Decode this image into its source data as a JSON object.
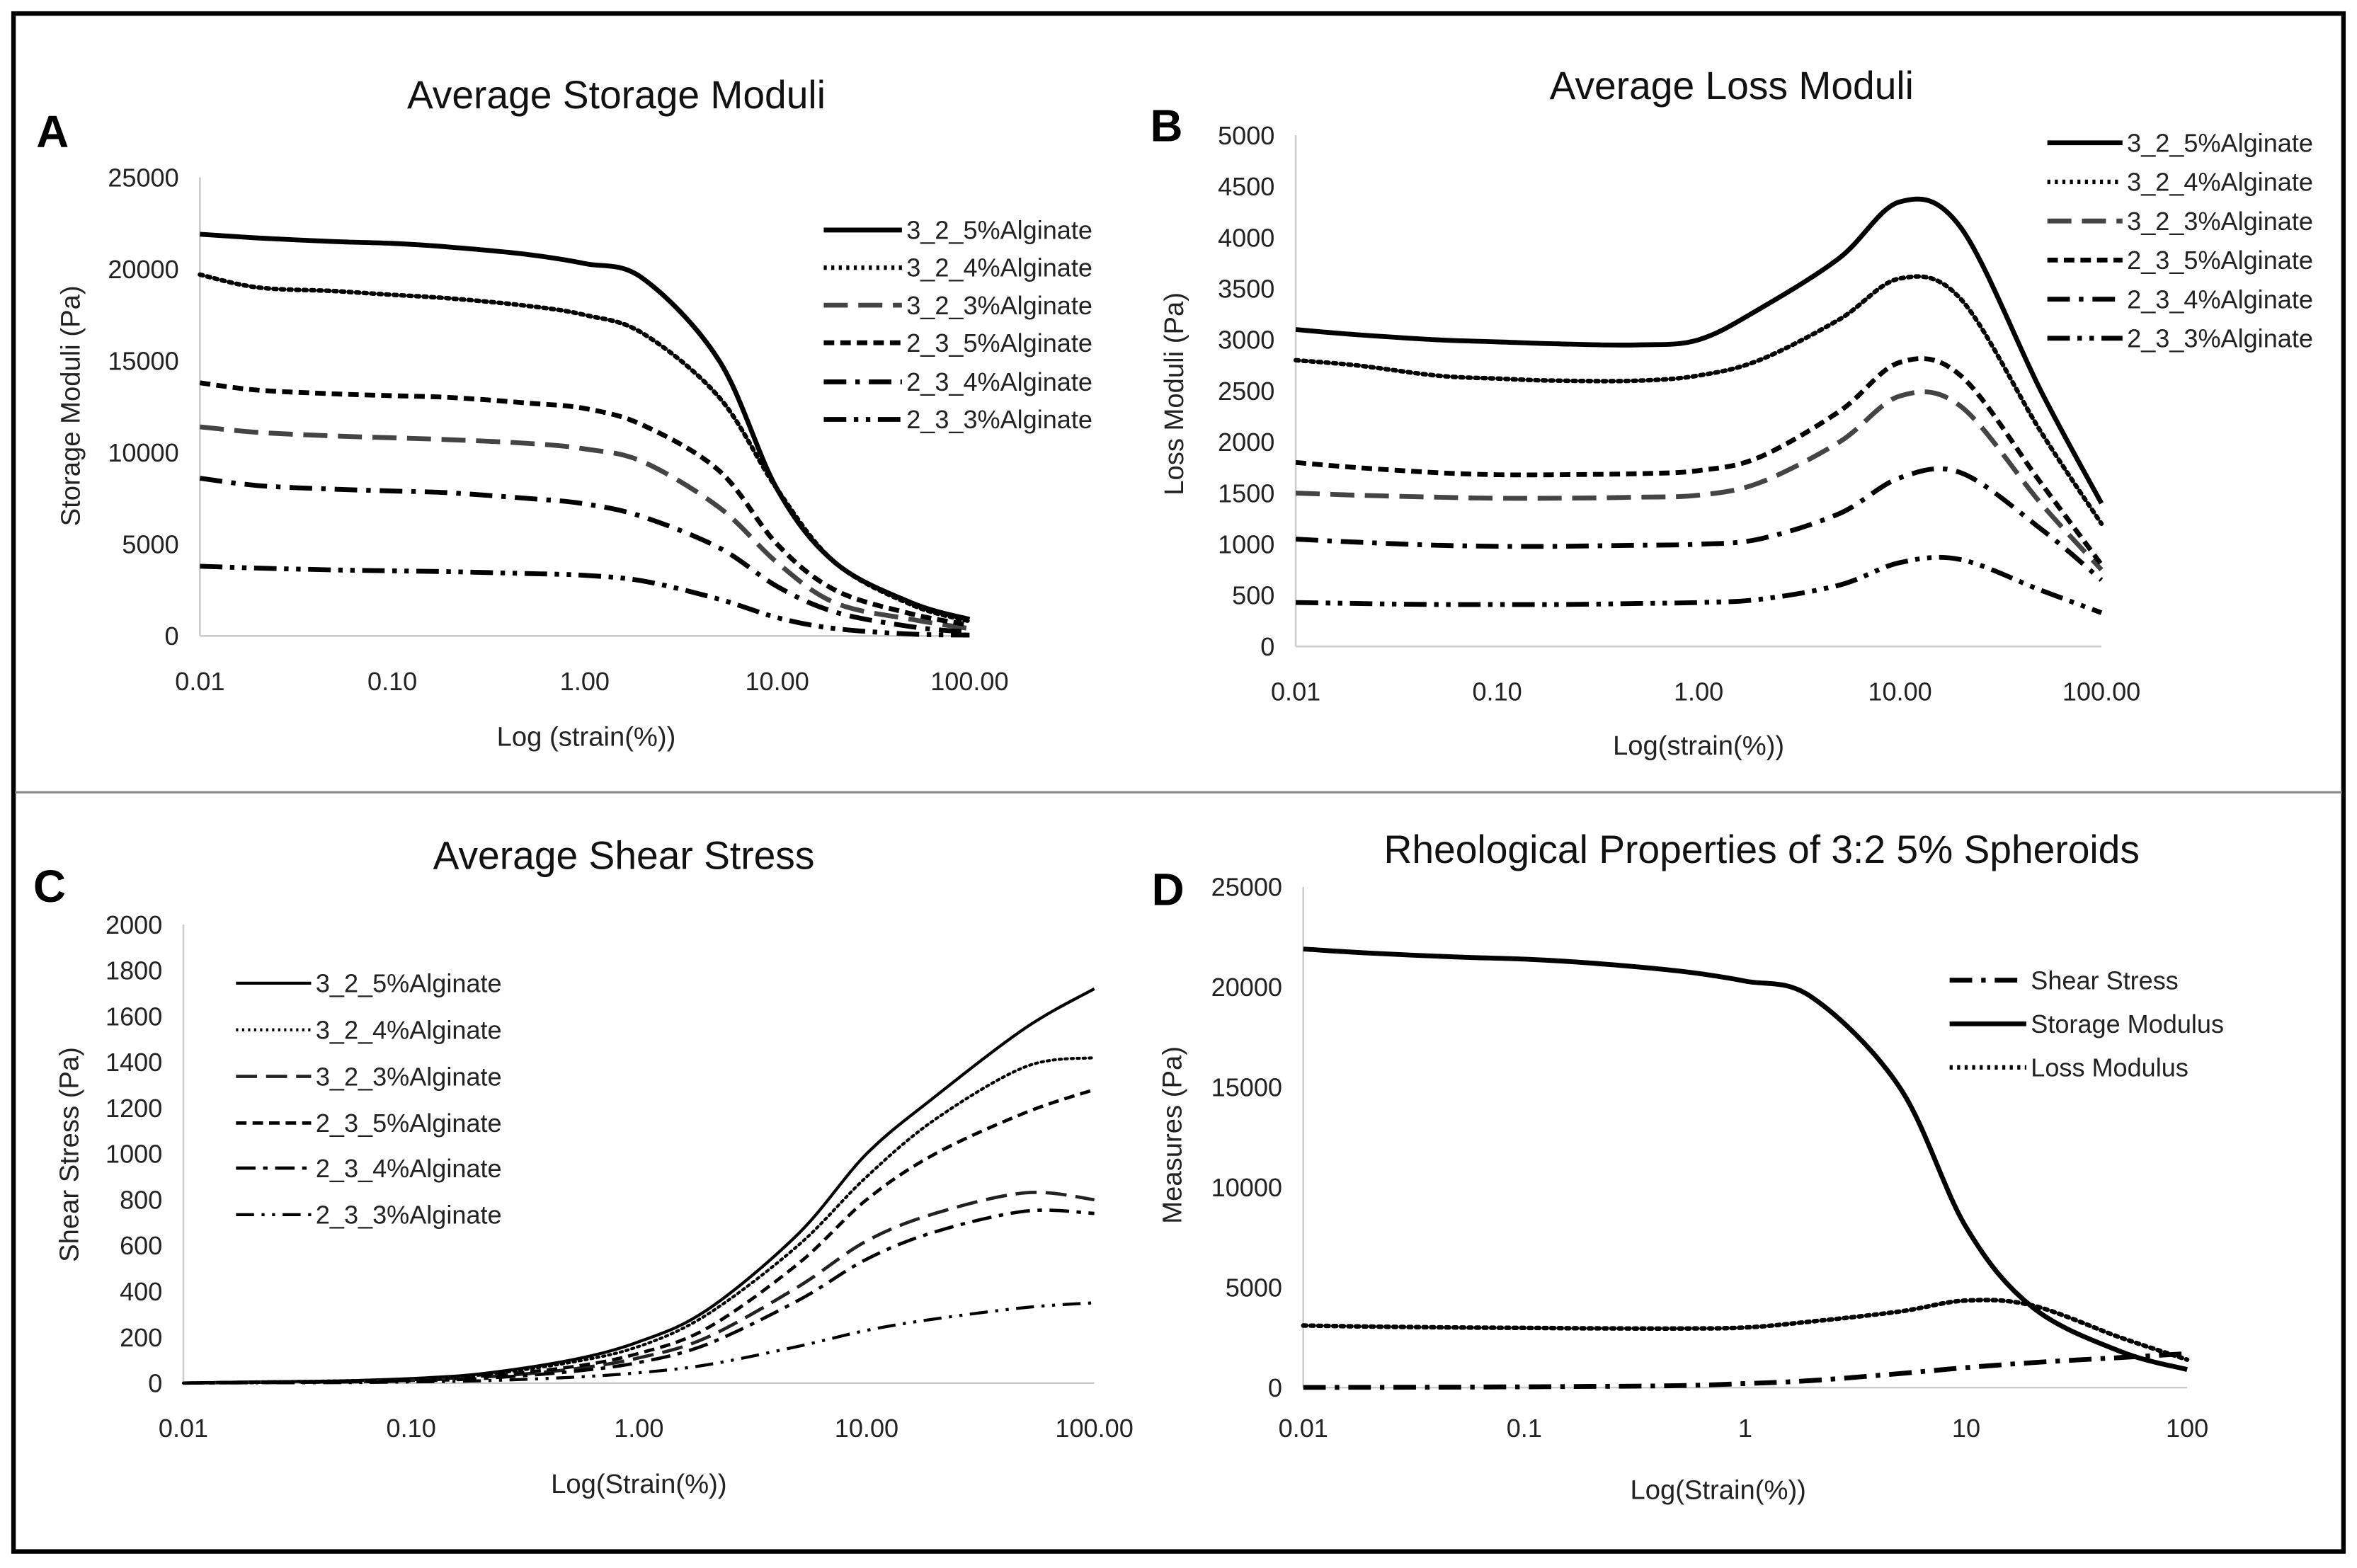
{
  "chart_data": [
    {
      "panel": "A",
      "type": "line",
      "title": "Average Storage Moduli",
      "xlabel": "Log (strain(%))",
      "ylabel": "Storage Moduli (Pa)",
      "xscale": "log",
      "xlim": [
        0.01,
        100
      ],
      "ylim": [
        0,
        25000
      ],
      "xticks": [
        "0.01",
        "0.10",
        "1.00",
        "10.00",
        "100.00"
      ],
      "yticks": [
        "0",
        "5000",
        "10000",
        "15000",
        "20000",
        "25000"
      ],
      "legend": "right",
      "x": [
        0.01,
        0.02,
        0.05,
        0.1,
        0.2,
        0.5,
        1,
        2,
        5,
        10,
        20,
        50,
        100
      ],
      "series": [
        {
          "name": "3_2_5%Alginate",
          "style": "solid",
          "values": [
            21900,
            21700,
            21500,
            21400,
            21200,
            20800,
            20300,
            19500,
            15000,
            8000,
            4000,
            1800,
            900
          ]
        },
        {
          "name": "3_2_4%Alginate",
          "style": "dotted",
          "values": [
            19700,
            19000,
            18800,
            18600,
            18400,
            18000,
            17500,
            16500,
            13000,
            8000,
            4000,
            1700,
            800
          ]
        },
        {
          "name": "3_2_3%Alginate",
          "style": "longdash",
          "values": [
            11400,
            11100,
            10900,
            10800,
            10700,
            10500,
            10200,
            9500,
            7000,
            4000,
            1800,
            900,
            400
          ]
        },
        {
          "name": "2_3_5%Alginate",
          "style": "shortdash",
          "values": [
            13800,
            13400,
            13200,
            13100,
            13000,
            12700,
            12400,
            11500,
            9000,
            5000,
            2500,
            1200,
            600
          ]
        },
        {
          "name": "2_3_4%Alginate",
          "style": "dashdot",
          "values": [
            8600,
            8200,
            8000,
            7900,
            7800,
            7500,
            7200,
            6500,
            4800,
            2700,
            1300,
            500,
            200
          ]
        },
        {
          "name": "2_3_3%Alginate",
          "style": "dashdotdot",
          "values": [
            3800,
            3700,
            3600,
            3550,
            3500,
            3400,
            3300,
            3000,
            2000,
            1000,
            400,
            100,
            50
          ]
        }
      ]
    },
    {
      "panel": "B",
      "type": "line",
      "title": "Average Loss Moduli",
      "xlabel": "Log(strain(%))",
      "ylabel": "Loss Moduli (Pa)",
      "xscale": "log",
      "xlim": [
        0.01,
        100
      ],
      "ylim": [
        0,
        5000
      ],
      "xticks": [
        "0.01",
        "0.10",
        "1.00",
        "10.00",
        "100.00"
      ],
      "yticks": [
        "0",
        "500",
        "1000",
        "1500",
        "2000",
        "2500",
        "3000",
        "3500",
        "4000",
        "4500",
        "5000"
      ],
      "legend": "top-right",
      "x": [
        0.01,
        0.02,
        0.05,
        0.1,
        0.2,
        0.5,
        1,
        2,
        5,
        10,
        20,
        50,
        100
      ],
      "series": [
        {
          "name": "3_2_5%Alginate",
          "style": "solid",
          "values": [
            3100,
            3050,
            3000,
            2980,
            2960,
            2950,
            3000,
            3300,
            3800,
            4350,
            4100,
            2500,
            1400
          ]
        },
        {
          "name": "3_2_4%Alginate",
          "style": "dotted",
          "values": [
            2800,
            2750,
            2650,
            2620,
            2600,
            2600,
            2650,
            2800,
            3200,
            3600,
            3400,
            2100,
            1200
          ]
        },
        {
          "name": "3_2_3%Alginate",
          "style": "longdash",
          "values": [
            1500,
            1480,
            1460,
            1450,
            1450,
            1460,
            1480,
            1600,
            2000,
            2450,
            2350,
            1400,
            750
          ]
        },
        {
          "name": "2_3_5%Alginate",
          "style": "shortdash",
          "values": [
            1800,
            1750,
            1700,
            1680,
            1680,
            1690,
            1720,
            1850,
            2300,
            2780,
            2650,
            1600,
            800
          ]
        },
        {
          "name": "2_3_4%Alginate",
          "style": "dashdot",
          "values": [
            1050,
            1020,
            990,
            980,
            980,
            990,
            1000,
            1050,
            1300,
            1650,
            1700,
            1150,
            650
          ]
        },
        {
          "name": "2_3_3%Alginate",
          "style": "dashdotdot",
          "values": [
            430,
            420,
            410,
            410,
            410,
            420,
            430,
            460,
            600,
            820,
            850,
            550,
            330
          ]
        }
      ]
    },
    {
      "panel": "C",
      "type": "line",
      "title": "Average Shear Stress",
      "xlabel": "Log(Strain(%))",
      "ylabel": "Shear Stress (Pa)",
      "xscale": "log",
      "xlim": [
        0.01,
        100
      ],
      "ylim": [
        0,
        2000
      ],
      "xticks": [
        "0.01",
        "0.10",
        "1.00",
        "10.00",
        "100.00"
      ],
      "yticks": [
        "0",
        "200",
        "400",
        "600",
        "800",
        "1000",
        "1200",
        "1400",
        "1600",
        "1800",
        "2000"
      ],
      "legend": "top-left",
      "x": [
        0.01,
        0.02,
        0.05,
        0.1,
        0.2,
        0.5,
        1,
        2,
        5,
        10,
        20,
        50,
        100
      ],
      "series": [
        {
          "name": "3_2_5%Alginate",
          "style": "thinsolid",
          "values": [
            0,
            5,
            10,
            20,
            40,
            100,
            180,
            320,
            650,
            1000,
            1250,
            1550,
            1720
          ]
        },
        {
          "name": "3_2_4%Alginate",
          "style": "thindotted",
          "values": [
            0,
            5,
            10,
            18,
            35,
            90,
            160,
            300,
            600,
            900,
            1150,
            1380,
            1420
          ]
        },
        {
          "name": "3_2_3%Alginate",
          "style": "thinlongdash",
          "values": [
            0,
            3,
            6,
            12,
            25,
            60,
            110,
            200,
            420,
            620,
            740,
            830,
            800
          ]
        },
        {
          "name": "2_3_5%Alginate",
          "style": "thinshortdash",
          "values": [
            0,
            4,
            8,
            15,
            30,
            70,
            130,
            240,
            520,
            800,
            1000,
            1180,
            1280
          ]
        },
        {
          "name": "2_3_4%Alginate",
          "style": "thindashdot",
          "values": [
            0,
            2,
            5,
            10,
            20,
            50,
            90,
            170,
            360,
            540,
            660,
            750,
            740
          ]
        },
        {
          "name": "2_3_3%Alginate",
          "style": "thindashdotdot",
          "values": [
            0,
            1,
            2,
            5,
            10,
            25,
            45,
            80,
            160,
            230,
            280,
            330,
            350
          ]
        }
      ]
    },
    {
      "panel": "D",
      "type": "line",
      "title": "Rheological Properties of 3:2 5% Spheroids",
      "xlabel": "Log(Strain(%))",
      "ylabel": "Measures (Pa)",
      "xscale": "log",
      "xlim": [
        0.01,
        100
      ],
      "ylim": [
        0,
        25000
      ],
      "xticks": [
        "0.01",
        "0.1",
        "1",
        "10",
        "100"
      ],
      "yticks": [
        "0",
        "5000",
        "10000",
        "15000",
        "20000",
        "25000"
      ],
      "legend": "right",
      "x": [
        0.01,
        0.02,
        0.05,
        0.1,
        0.2,
        0.5,
        1,
        2,
        5,
        10,
        20,
        50,
        100
      ],
      "series": [
        {
          "name": "Shear Stress",
          "style": "dashdot",
          "values": [
            10,
            15,
            25,
            40,
            60,
            100,
            200,
            350,
            700,
            1000,
            1250,
            1500,
            1700
          ]
        },
        {
          "name": "Storage Modulus",
          "style": "solid",
          "values": [
            21900,
            21700,
            21500,
            21400,
            21200,
            20800,
            20300,
            19500,
            15000,
            8000,
            4000,
            1800,
            900
          ]
        },
        {
          "name": "Loss Modulus",
          "style": "dotted",
          "values": [
            3100,
            3050,
            3000,
            2980,
            2960,
            2950,
            3000,
            3300,
            3800,
            4350,
            4100,
            2500,
            1400
          ]
        }
      ]
    }
  ]
}
